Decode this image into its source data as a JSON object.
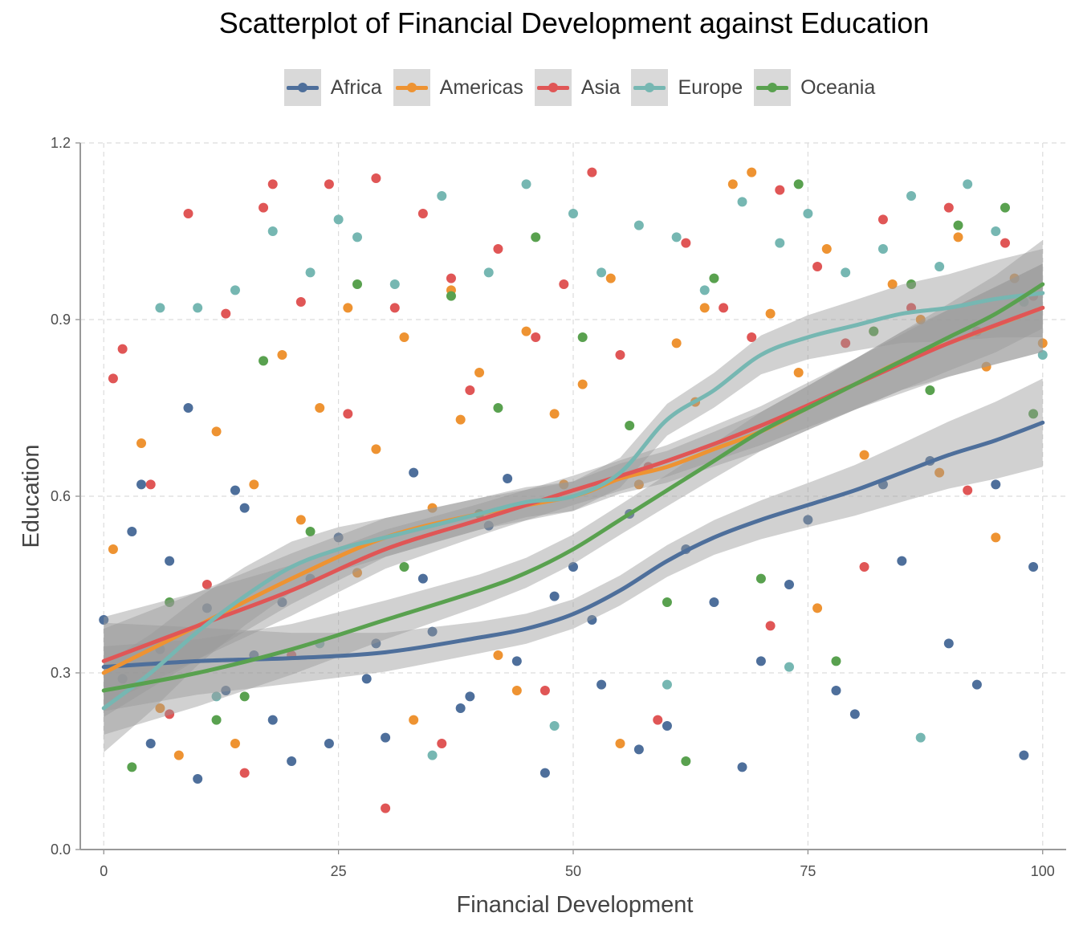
{
  "chart_data": {
    "type": "scatter",
    "title": "Scatterplot of Financial Development against Education",
    "xlabel": "Financial Development",
    "ylabel": "Education",
    "xlim": [
      -2.5,
      102.5
    ],
    "ylim": [
      0,
      1.2
    ],
    "x_ticks": [
      0,
      25,
      50,
      75,
      100
    ],
    "x_tick_labels": [
      "0",
      "25",
      "50",
      "75",
      "100"
    ],
    "y_ticks": [
      0.0,
      0.3,
      0.6,
      0.9,
      1.2
    ],
    "y_tick_labels": [
      "0.0",
      "0.3",
      "0.6",
      "0.9",
      "1.2"
    ],
    "grid": true,
    "legend_position": "top",
    "series": [
      {
        "name": "Africa",
        "color": "#4e6f9b",
        "trend_x": [
          0,
          10,
          20,
          30,
          40,
          45,
          50,
          55,
          60,
          65,
          70,
          75,
          80,
          85,
          90,
          95,
          100
        ],
        "trend_y": [
          0.31,
          0.32,
          0.325,
          0.335,
          0.36,
          0.375,
          0.4,
          0.44,
          0.49,
          0.53,
          0.56,
          0.585,
          0.61,
          0.64,
          0.67,
          0.695,
          0.725
        ],
        "points_x": [
          0,
          2,
          4,
          5,
          7,
          9,
          11,
          13,
          14,
          16,
          18,
          20,
          22,
          25,
          28,
          30,
          33,
          35,
          38,
          41,
          44,
          47,
          50,
          53,
          56,
          60,
          65,
          70,
          75,
          80,
          85,
          90,
          95,
          99,
          3,
          6,
          10,
          15,
          19,
          24,
          29,
          34,
          39,
          43,
          48,
          52,
          57,
          62,
          68,
          73,
          78,
          83,
          88,
          93,
          98
        ],
        "points_y": [
          0.39,
          0.29,
          0.62,
          0.18,
          0.49,
          0.75,
          0.41,
          0.27,
          0.61,
          0.33,
          0.22,
          0.15,
          0.46,
          0.53,
          0.29,
          0.19,
          0.64,
          0.37,
          0.24,
          0.55,
          0.32,
          0.13,
          0.48,
          0.28,
          0.57,
          0.21,
          0.42,
          0.32,
          0.56,
          0.23,
          0.49,
          0.35,
          0.62,
          0.48,
          0.54,
          0.34,
          0.12,
          0.58,
          0.42,
          0.18,
          0.35,
          0.46,
          0.26,
          0.63,
          0.43,
          0.39,
          0.17,
          0.51,
          0.14,
          0.45,
          0.27,
          0.62,
          0.66,
          0.28,
          0.16
        ]
      },
      {
        "name": "Americas",
        "color": "#ee9332",
        "trend_x": [
          0,
          10,
          20,
          30,
          40,
          50,
          55,
          60,
          65,
          70,
          75,
          80,
          85,
          90,
          95,
          100
        ],
        "trend_y": [
          0.3,
          0.38,
          0.46,
          0.53,
          0.57,
          0.6,
          0.63,
          0.65,
          0.68,
          0.71,
          0.75,
          0.79,
          0.83,
          0.86,
          0.89,
          0.92
        ],
        "points_x": [
          1,
          4,
          8,
          12,
          16,
          19,
          23,
          26,
          29,
          32,
          35,
          37,
          40,
          42,
          45,
          48,
          51,
          54,
          57,
          61,
          64,
          67,
          71,
          74,
          77,
          81,
          84,
          87,
          91,
          94,
          97,
          100,
          6,
          14,
          21,
          27,
          33,
          38,
          44,
          49,
          55,
          63,
          69,
          76,
          82,
          89,
          95
        ],
        "points_y": [
          0.51,
          0.69,
          0.16,
          0.71,
          0.62,
          0.84,
          0.75,
          0.92,
          0.68,
          0.87,
          0.58,
          0.95,
          0.81,
          0.33,
          0.88,
          0.74,
          0.79,
          0.97,
          0.62,
          0.86,
          0.92,
          1.13,
          0.91,
          0.81,
          1.02,
          0.67,
          0.96,
          0.9,
          1.04,
          0.82,
          0.97,
          0.86,
          0.24,
          0.18,
          0.56,
          0.47,
          0.22,
          0.73,
          0.27,
          0.62,
          0.18,
          0.76,
          1.15,
          0.41,
          0.88,
          0.64,
          0.53
        ]
      },
      {
        "name": "Asia",
        "color": "#e05656",
        "trend_x": [
          0,
          10,
          20,
          30,
          40,
          50,
          60,
          70,
          80,
          90,
          100
        ],
        "trend_y": [
          0.32,
          0.38,
          0.44,
          0.51,
          0.56,
          0.61,
          0.66,
          0.72,
          0.79,
          0.86,
          0.92
        ],
        "points_x": [
          2,
          5,
          9,
          13,
          17,
          18,
          21,
          24,
          26,
          29,
          31,
          34,
          37,
          39,
          42,
          46,
          49,
          52,
          55,
          58,
          62,
          66,
          69,
          72,
          76,
          79,
          83,
          86,
          90,
          93,
          96,
          99,
          1,
          7,
          11,
          15,
          20,
          30,
          36,
          47,
          59,
          71,
          81,
          92
        ],
        "points_y": [
          0.85,
          0.62,
          1.08,
          0.91,
          1.09,
          1.13,
          0.93,
          1.13,
          0.74,
          1.14,
          0.92,
          1.08,
          0.97,
          0.78,
          1.02,
          0.87,
          0.96,
          1.15,
          0.84,
          0.65,
          1.03,
          0.92,
          0.87,
          1.12,
          0.99,
          0.86,
          1.07,
          0.92,
          1.09,
          0.88,
          1.03,
          0.94,
          0.8,
          0.23,
          0.45,
          0.13,
          0.33,
          0.07,
          0.18,
          0.27,
          0.22,
          0.38,
          0.48,
          0.61
        ]
      },
      {
        "name": "Europe",
        "color": "#76b7b2",
        "trend_x": [
          0,
          5,
          10,
          15,
          20,
          25,
          30,
          35,
          40,
          45,
          50,
          55,
          60,
          65,
          70,
          75,
          80,
          85,
          90,
          95,
          100
        ],
        "trend_y": [
          0.24,
          0.3,
          0.37,
          0.43,
          0.48,
          0.51,
          0.53,
          0.55,
          0.57,
          0.59,
          0.6,
          0.64,
          0.73,
          0.78,
          0.84,
          0.87,
          0.89,
          0.91,
          0.92,
          0.935,
          0.945
        ],
        "points_x": [
          6,
          10,
          14,
          18,
          22,
          25,
          27,
          31,
          36,
          41,
          45,
          50,
          53,
          57,
          61,
          64,
          68,
          72,
          75,
          79,
          83,
          86,
          89,
          92,
          95,
          98,
          100,
          12,
          23,
          35,
          48,
          60,
          73,
          87
        ],
        "points_y": [
          0.92,
          0.92,
          0.95,
          1.05,
          0.98,
          1.07,
          1.04,
          0.96,
          1.11,
          0.98,
          1.13,
          1.08,
          0.98,
          1.06,
          1.04,
          0.95,
          1.1,
          1.03,
          1.08,
          0.98,
          1.02,
          1.11,
          0.99,
          1.13,
          1.05,
          0.93,
          0.84,
          0.26,
          0.35,
          0.16,
          0.21,
          0.28,
          0.31,
          0.19
        ]
      },
      {
        "name": "Oceania",
        "color": "#59a14f",
        "trend_x": [
          0,
          10,
          20,
          30,
          40,
          45,
          50,
          55,
          60,
          65,
          70,
          75,
          80,
          85,
          90,
          95,
          100
        ],
        "trend_y": [
          0.27,
          0.3,
          0.34,
          0.39,
          0.44,
          0.47,
          0.51,
          0.56,
          0.61,
          0.66,
          0.71,
          0.75,
          0.79,
          0.83,
          0.87,
          0.91,
          0.96
        ],
        "points_x": [
          3,
          7,
          12,
          17,
          22,
          27,
          32,
          37,
          42,
          46,
          51,
          56,
          60,
          65,
          70,
          74,
          78,
          82,
          86,
          91,
          96,
          99,
          15,
          40,
          62,
          88
        ],
        "points_y": [
          0.14,
          0.42,
          0.22,
          0.83,
          0.54,
          0.96,
          0.48,
          0.94,
          0.75,
          1.04,
          0.87,
          0.72,
          0.42,
          0.97,
          0.46,
          1.13,
          0.32,
          0.88,
          0.96,
          1.06,
          1.09,
          0.74,
          0.26,
          0.57,
          0.15,
          0.78
        ]
      }
    ]
  }
}
